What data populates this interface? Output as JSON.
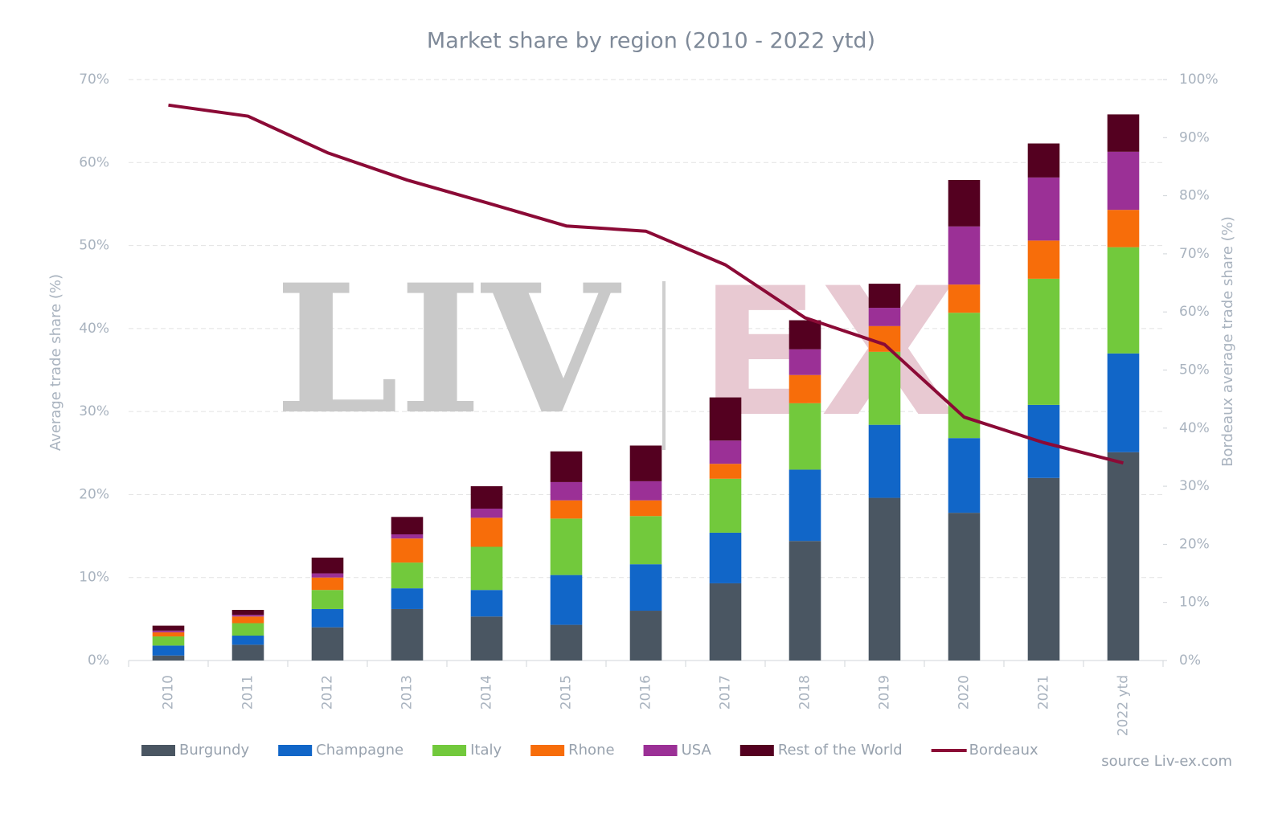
{
  "chart_data": {
    "type": "bar",
    "stacked": true,
    "title": "Market share by region (2010 - 2022 ytd)",
    "y_label": "Average trade share (%)",
    "y2_label": "Bordeaux average trade share (%)",
    "source": "source Liv-ex.com",
    "watermark": [
      "LIV",
      "EX"
    ],
    "categories": [
      "2010",
      "2011",
      "2012",
      "2013",
      "2014",
      "2015",
      "2016",
      "2017",
      "2018",
      "2019",
      "2020",
      "2021",
      "2022 ytd"
    ],
    "series": [
      {
        "name": "Burgundy",
        "color": "#4a5662",
        "values": [
          0.6,
          1.9,
          4.0,
          6.2,
          5.3,
          4.3,
          6.0,
          9.3,
          14.4,
          19.6,
          17.8,
          22.0,
          25.1
        ]
      },
      {
        "name": "Champagne",
        "color": "#1166c8",
        "values": [
          1.2,
          1.1,
          2.2,
          2.5,
          3.2,
          6.0,
          5.6,
          6.1,
          8.6,
          8.8,
          9.0,
          8.8,
          11.9
        ]
      },
      {
        "name": "Italy",
        "color": "#72c93c",
        "values": [
          1.1,
          1.5,
          2.3,
          3.1,
          5.2,
          6.8,
          5.8,
          6.5,
          8.0,
          8.8,
          15.1,
          15.2,
          12.8
        ]
      },
      {
        "name": "Rhone",
        "color": "#f76d0a",
        "values": [
          0.5,
          0.8,
          1.5,
          2.9,
          3.5,
          2.2,
          1.9,
          1.8,
          3.4,
          3.1,
          3.4,
          4.6,
          4.5
        ]
      },
      {
        "name": "USA",
        "color": "#9b3096",
        "values": [
          0.2,
          0.2,
          0.5,
          0.5,
          1.1,
          2.2,
          2.3,
          2.8,
          3.1,
          2.2,
          7.0,
          7.6,
          7.0
        ]
      },
      {
        "name": "Rest of the World",
        "color": "#540020",
        "values": [
          0.6,
          0.6,
          1.9,
          2.1,
          2.7,
          3.7,
          4.3,
          5.2,
          3.5,
          2.9,
          5.6,
          4.1,
          4.5
        ]
      },
      {
        "name": "Bordeaux",
        "color": "#8b0a36",
        "type": "line",
        "axis": "y2",
        "values": [
          95.6,
          93.7,
          87.4,
          82.7,
          78.8,
          74.8,
          73.9,
          68.1,
          59.0,
          54.4,
          41.9,
          37.5,
          34.0
        ]
      }
    ],
    "ylim": [
      0,
      70
    ],
    "yticks": [
      {
        "value": 0,
        "label": "0%"
      },
      {
        "value": 10,
        "label": "10%"
      },
      {
        "value": 20,
        "label": "20%"
      },
      {
        "value": 30,
        "label": "30%"
      },
      {
        "value": 40,
        "label": "40%"
      },
      {
        "value": 50,
        "label": "50%"
      },
      {
        "value": 60,
        "label": "60%"
      },
      {
        "value": 70,
        "label": "70%"
      }
    ],
    "y2lim": [
      0,
      100
    ],
    "y2ticks": [
      {
        "value": 0,
        "label": "0%"
      },
      {
        "value": 10,
        "label": "10%"
      },
      {
        "value": 20,
        "label": "20%"
      },
      {
        "value": 30,
        "label": "30%"
      },
      {
        "value": 40,
        "label": "40%"
      },
      {
        "value": 50,
        "label": "50%"
      },
      {
        "value": 60,
        "label": "60%"
      },
      {
        "value": 70,
        "label": "70%"
      },
      {
        "value": 80,
        "label": "80%"
      },
      {
        "value": 90,
        "label": "90%"
      },
      {
        "value": 100,
        "label": "100%"
      }
    ],
    "grid": true,
    "legend": "bottom"
  }
}
